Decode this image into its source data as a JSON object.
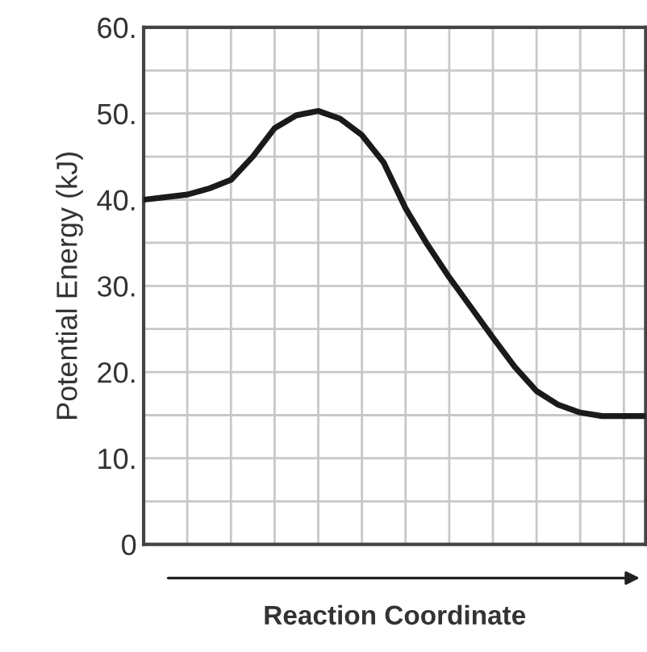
{
  "chart_data": {
    "type": "line",
    "xlabel": "Reaction Coordinate",
    "ylabel": "Potential Energy (kJ)",
    "categories": [
      null,
      null,
      null,
      null,
      null,
      null,
      null,
      null,
      null,
      null,
      null,
      null,
      null,
      null,
      null,
      null,
      null,
      null,
      null,
      null,
      null,
      null,
      null,
      null
    ],
    "series": [
      {
        "color": "#1a1a1a",
        "values": [
          40,
          40.3,
          40.6,
          41.3,
          42.3,
          45,
          48.3,
          49.8,
          50.3,
          49.4,
          47.5,
          44.3,
          39,
          34.8,
          31,
          27.5,
          24,
          20.6,
          17.8,
          16.2,
          15.3,
          14.9,
          14.9,
          14.9
        ]
      }
    ],
    "ylim": [
      0,
      60
    ],
    "yticks": [
      {
        "value": 0,
        "label": "0"
      },
      {
        "value": 5,
        "label": null
      },
      {
        "value": 10,
        "label": "10."
      },
      {
        "value": 15,
        "label": null
      },
      {
        "value": 20,
        "label": "20."
      },
      {
        "value": 25,
        "label": null
      },
      {
        "value": 30,
        "label": "30."
      },
      {
        "value": 35,
        "label": null
      },
      {
        "value": 40,
        "label": "40."
      },
      {
        "value": 45,
        "label": null
      },
      {
        "value": 50,
        "label": "50."
      },
      {
        "value": 55,
        "label": null
      },
      {
        "value": 60,
        "label": "60."
      }
    ],
    "tick_labels": "y",
    "grid": true,
    "marker": "none",
    "line_style": "solid"
  }
}
